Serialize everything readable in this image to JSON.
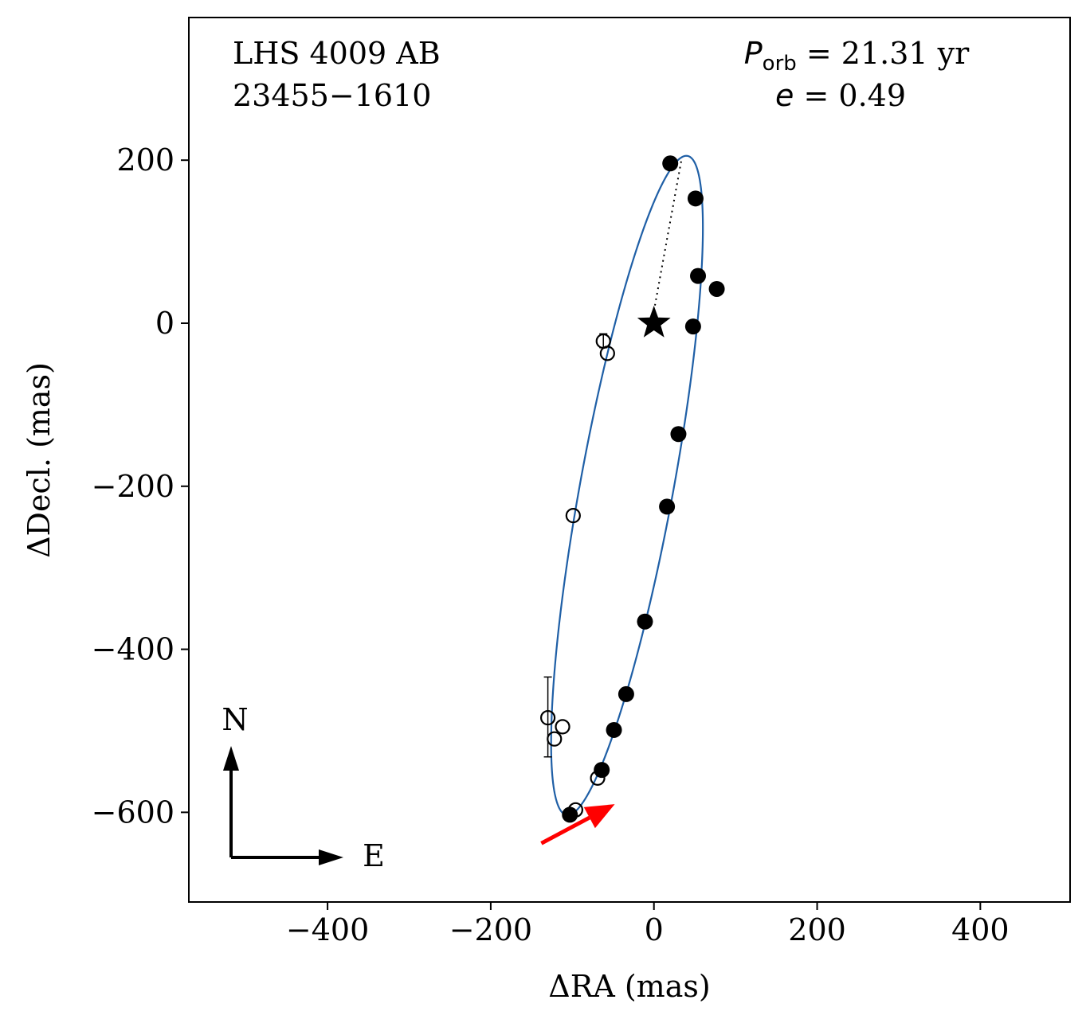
{
  "chart_data": {
    "type": "scatter",
    "title": "",
    "xlabel": "ΔRA  (mas)",
    "ylabel": "ΔDecl.  (mas)",
    "xlim": [
      -570,
      510
    ],
    "ylim": [
      -710,
      375
    ],
    "xticks": [
      -400,
      -200,
      0,
      200,
      400
    ],
    "yticks": [
      200,
      0,
      -200,
      -400,
      -600
    ],
    "xtick_labels": [
      "−400",
      "−200",
      "0",
      "200",
      "400"
    ],
    "ytick_labels": [
      "200",
      "0",
      "−200",
      "−400",
      "−600"
    ],
    "grid": false,
    "annotations": {
      "system_name": "LHS 4009 AB",
      "system_id": "23455−1610",
      "period_symbol": "P",
      "period_subscript": "orb",
      "period_value": " = 21.31 yr",
      "ecc_symbol": "e",
      "ecc_value": " = 0.49"
    },
    "compass": {
      "north": "N",
      "east": "E"
    },
    "orbit": {
      "color": "#1f5fa6",
      "center": [
        -33,
        -199
      ],
      "semi_axis_a": 411,
      "semi_axis_b": 57,
      "major_axis_angle_deg": 79.6
    },
    "primary_star": {
      "x": 0,
      "y": 0,
      "marker": "star"
    },
    "periastron_line": {
      "x": [
        0,
        34
      ],
      "y": [
        15,
        202
      ],
      "style": "dotted"
    },
    "motion_arrow": {
      "color": "#ff0000",
      "x0": -138,
      "y0": -638,
      "x1": -48,
      "y1": -590
    },
    "series": [
      {
        "name": "filled points",
        "marker": "filled-circle",
        "x": [
          20,
          51,
          54,
          77,
          48,
          30,
          16,
          -11,
          -34,
          -49,
          -64,
          -103
        ],
        "y": [
          196,
          153,
          58,
          42,
          -4,
          -136,
          -225,
          -366,
          -455,
          -499,
          -548,
          -603
        ]
      },
      {
        "name": "open points",
        "marker": "open-circle",
        "x": [
          -62,
          -57,
          -99,
          -130,
          -112,
          -122,
          -69,
          -96
        ],
        "y": [
          -22,
          -37,
          -236,
          -484,
          -495,
          -510,
          -558,
          -597
        ]
      }
    ],
    "error_bars": [
      {
        "x": -130,
        "y": -484,
        "ylo": -532,
        "yhi": -434
      },
      {
        "x": -62,
        "y": -22,
        "ylo": -30,
        "yhi": -13
      }
    ]
  }
}
